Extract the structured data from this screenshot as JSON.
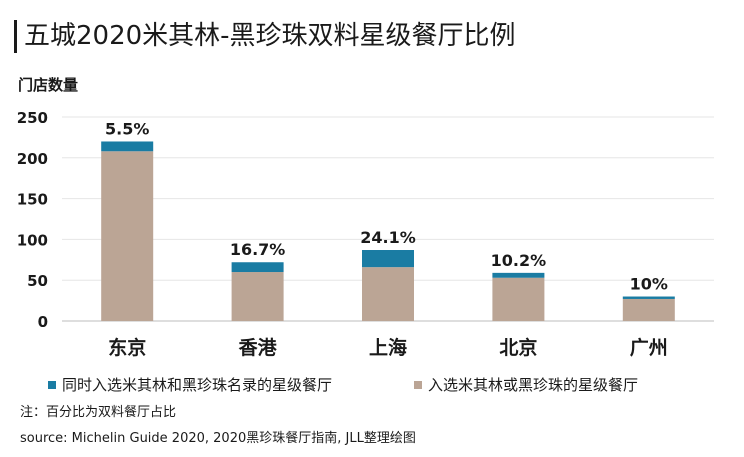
{
  "chart_data": {
    "type": "bar",
    "stacked": true,
    "title": "五城2020米其林-黑珍珠双料星级餐厅比例",
    "ylabel": "门店数量",
    "ylim": [
      0,
      250
    ],
    "yticks": [
      0,
      50,
      100,
      150,
      200,
      250
    ],
    "categories": [
      "东京",
      "香港",
      "上海",
      "北京",
      "广州"
    ],
    "series": [
      {
        "name": "入选米其林或黑珍珠的星级餐厅",
        "color": "#bba595",
        "values": [
          208,
          60,
          66,
          53,
          27
        ]
      },
      {
        "name": "同时入选米其林和黑珍珠名录的星级餐厅",
        "color": "#1a7ca3",
        "values": [
          12,
          12,
          21,
          6,
          3
        ]
      }
    ],
    "data_labels": [
      "5.5%",
      "16.7%",
      "24.1%",
      "10.2%",
      "10%"
    ],
    "legend_position": "bottom",
    "grid": true
  },
  "note": "注：百分比为双料餐厅占比",
  "source": "source:  Michelin Guide 2020, 2020黑珍珠餐厅指南, JLL整理绘图"
}
